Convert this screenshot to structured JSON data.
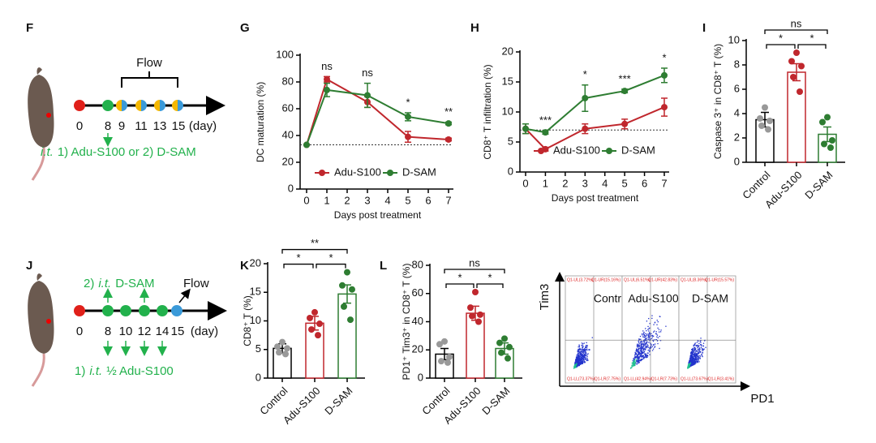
{
  "panels": {
    "f": "F",
    "g": "G",
    "h": "H",
    "i": "I",
    "j": "J",
    "k": "K",
    "l": "L"
  },
  "timeline_f": {
    "flow": "Flow",
    "days": [
      "0",
      "8",
      "9",
      "11",
      "13",
      "15"
    ],
    "unit": "(day)",
    "route": "i.t.",
    "treatment": "1) Adu-S100 or 2) D-SAM"
  },
  "timeline_j": {
    "flow": "Flow",
    "days": [
      "0",
      "8",
      "10",
      "12",
      "14",
      "15"
    ],
    "unit": "(day)",
    "top": {
      "prefix": "2)",
      "route": "i.t.",
      "text": "D-SAM"
    },
    "bottom": {
      "prefix": "1)",
      "route": "i.t.",
      "text": "½ Adu-S100"
    }
  },
  "chart_data": [
    {
      "type": "line",
      "y_label": "DC maturation (%)",
      "x_label": "Days post treatment",
      "x": [
        0,
        1,
        3,
        5,
        7
      ],
      "xlim": [
        0,
        7
      ],
      "xticks": [
        0,
        1,
        2,
        3,
        4,
        5,
        6,
        7
      ],
      "ylim": [
        0,
        100
      ],
      "yticks": [
        0,
        20,
        40,
        60,
        80,
        100
      ],
      "ref_line": 33,
      "series": [
        {
          "name": "Adu-S100",
          "color": "#c0272d",
          "values": [
            33,
            82,
            65,
            39,
            37
          ],
          "errors": [
            0,
            2,
            4,
            4,
            1
          ]
        },
        {
          "name": "D-SAM",
          "color": "#2e7d32",
          "values": [
            33,
            74,
            70,
            54,
            49
          ],
          "errors": [
            0,
            5,
            9,
            3,
            1
          ]
        }
      ],
      "annotations": [
        {
          "x": 1,
          "text": "ns"
        },
        {
          "x": 3,
          "text": "ns"
        },
        {
          "x": 5,
          "text": "*"
        },
        {
          "x": 7,
          "text": "**"
        }
      ]
    },
    {
      "type": "line",
      "y_label": "CD8⁺ T infiltration (%)",
      "x_label": "Days post treatment",
      "x": [
        0,
        1,
        3,
        5,
        7
      ],
      "xlim": [
        0,
        7
      ],
      "xticks": [
        0,
        1,
        2,
        3,
        4,
        5,
        6,
        7
      ],
      "ylim": [
        0,
        20
      ],
      "yticks": [
        0,
        5,
        10,
        15,
        20
      ],
      "ref_line": 7,
      "series": [
        {
          "name": "Adu-S100",
          "color": "#c0272d",
          "values": [
            7.2,
            3.8,
            7.2,
            8,
            10.8
          ],
          "errors": [
            0.8,
            0.3,
            0.8,
            0.8,
            1.5
          ]
        },
        {
          "name": "D-SAM",
          "color": "#2e7d32",
          "values": [
            7.2,
            6.6,
            12.3,
            13.5,
            16.1
          ],
          "errors": [
            0.8,
            0.3,
            2.2,
            0.3,
            1.2
          ]
        }
      ],
      "annotations": [
        {
          "x": 1,
          "text": "***"
        },
        {
          "x": 3,
          "text": "*"
        },
        {
          "x": 5,
          "text": "***"
        },
        {
          "x": 7,
          "text": "*"
        }
      ]
    },
    {
      "type": "bar",
      "y_label": "Caspase 3⁺ in CD8⁺ T (%)",
      "categories": [
        "Control",
        "Adu-S100",
        "D-SAM"
      ],
      "values": [
        3.5,
        7.4,
        2.3
      ],
      "errors": [
        0.6,
        0.7,
        0.6
      ],
      "colors": [
        "#777777",
        "#c0272d",
        "#2e7d32"
      ],
      "points": [
        [
          4.5,
          3.6,
          3.4,
          3.0,
          2.7
        ],
        [
          9.0,
          8.3,
          7.9,
          7.0,
          5.8
        ],
        [
          3.7,
          3.3,
          1.8,
          1.5,
          1.2
        ]
      ],
      "ylim": [
        0,
        10
      ],
      "yticks": [
        0,
        2,
        4,
        6,
        8,
        10
      ],
      "brackets": [
        {
          "from": 0,
          "to": 1,
          "label": "*"
        },
        {
          "from": 1,
          "to": 2,
          "label": "*"
        },
        {
          "from": 0,
          "to": 2,
          "label": "ns"
        }
      ]
    },
    {
      "type": "bar",
      "y_label": "CD8⁺ T (%)",
      "categories": [
        "Control",
        "Adu-S100",
        "D-SAM"
      ],
      "values": [
        5.2,
        9.6,
        14.7
      ],
      "errors": [
        0.8,
        1.2,
        1.6
      ],
      "colors": [
        "#777777",
        "#c0272d",
        "#2e7d32"
      ],
      "points": [
        [
          6.3,
          5.5,
          5.2,
          4.5,
          4.2
        ],
        [
          11.5,
          10.5,
          9.5,
          8.5,
          7.5
        ],
        [
          18.5,
          16.2,
          15.5,
          12.5,
          10.2
        ]
      ],
      "ylim": [
        0,
        20
      ],
      "yticks": [
        0,
        5,
        10,
        15,
        20
      ],
      "brackets": [
        {
          "from": 0,
          "to": 1,
          "label": "*"
        },
        {
          "from": 1,
          "to": 2,
          "label": "*"
        },
        {
          "from": 0,
          "to": 2,
          "label": "**"
        }
      ]
    },
    {
      "type": "bar",
      "y_label": "PD1⁺ Tim3⁺ in CD8⁺ T (%)",
      "categories": [
        "Control",
        "Adu-S100",
        "D-SAM"
      ],
      "values": [
        17,
        46,
        21
      ],
      "errors": [
        4,
        5,
        4
      ],
      "colors": [
        "#777777",
        "#c0272d",
        "#2e7d32"
      ],
      "points": [
        [
          26,
          24,
          15,
          12,
          11
        ],
        [
          61,
          50,
          45,
          44,
          40
        ],
        [
          28,
          25,
          22,
          18,
          14
        ]
      ],
      "ylim": [
        0,
        80
      ],
      "yticks": [
        0,
        20,
        40,
        60,
        80
      ],
      "brackets": [
        {
          "from": 0,
          "to": 1,
          "label": "*"
        },
        {
          "from": 1,
          "to": 2,
          "label": "*"
        },
        {
          "from": 0,
          "to": 2,
          "label": "ns"
        }
      ]
    }
  ],
  "flow": {
    "y_label": "Tim3",
    "x_label": "PD1",
    "plots": [
      {
        "name": "Control",
        "quadrants": [
          "Q1-UL(3.72%)",
          "Q1-UR(15.16%)",
          "Q1-LL(73.37%)",
          "Q1-LR(7.75%)"
        ]
      },
      {
        "name": "Adu-S100",
        "quadrants": [
          "Q1-UL(6.51%)",
          "Q1-UR(42.83%)",
          "Q1-LL(42.94%)",
          "Q1-LR(7.73%)"
        ]
      },
      {
        "name": "D-SAM",
        "quadrants": [
          "Q1-UL(8.36%)",
          "Q1-UR(15.57%)",
          "Q1-LL(73.67%)",
          "Q1-LR(3.41%)"
        ]
      }
    ]
  }
}
